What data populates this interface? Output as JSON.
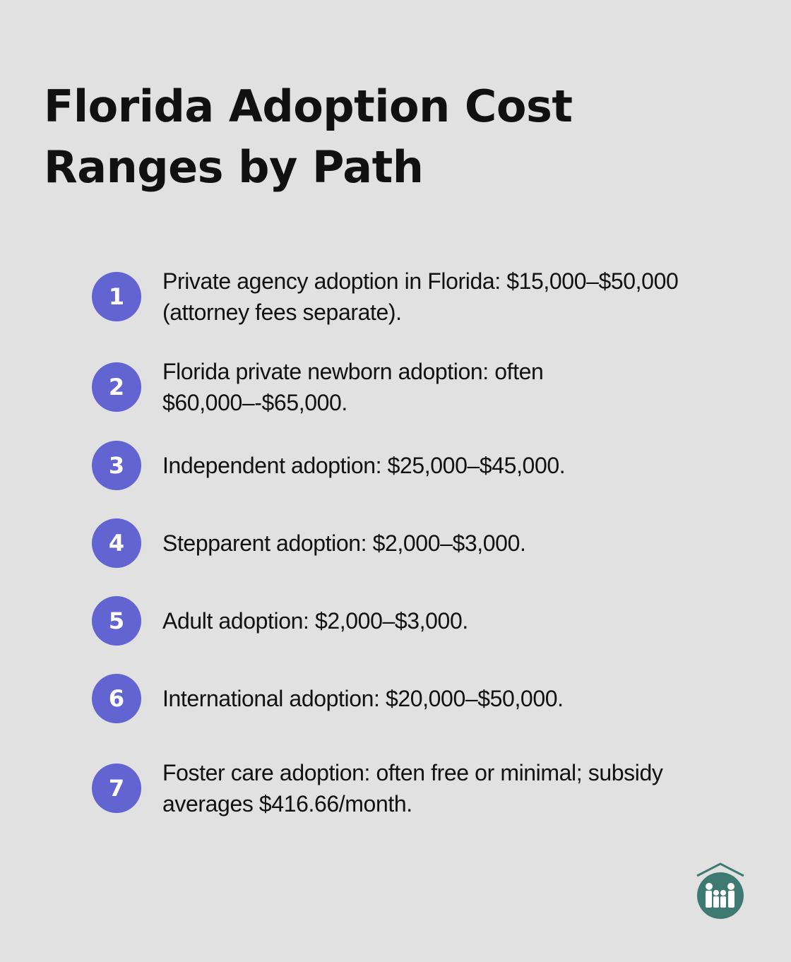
{
  "title": "Florida Adoption Cost Ranges by Path",
  "items": [
    {
      "number": "1",
      "text": "Private agency adoption in Florida: $15,000–$50,000 (attorney fees separate)."
    },
    {
      "number": "2",
      "text": "Florida private newborn adoption: often $60,000–-$65,000."
    },
    {
      "number": "3",
      "text": "Independent adoption: $25,000–$45,000."
    },
    {
      "number": "4",
      "text": "Stepparent adoption: $2,000–$3,000."
    },
    {
      "number": "5",
      "text": "Adult adoption: $2,000–$3,000."
    },
    {
      "number": "6",
      "text": "International adoption: $20,000–$50,000."
    },
    {
      "number": "7",
      "text": "Foster care adoption: often free or minimal; subsidy averages $416.66/month."
    }
  ],
  "colors": {
    "background": "#e0e1e0",
    "badge": "#6264d2",
    "logo": "#3f7a72"
  },
  "logo_icon": "family-house-icon"
}
